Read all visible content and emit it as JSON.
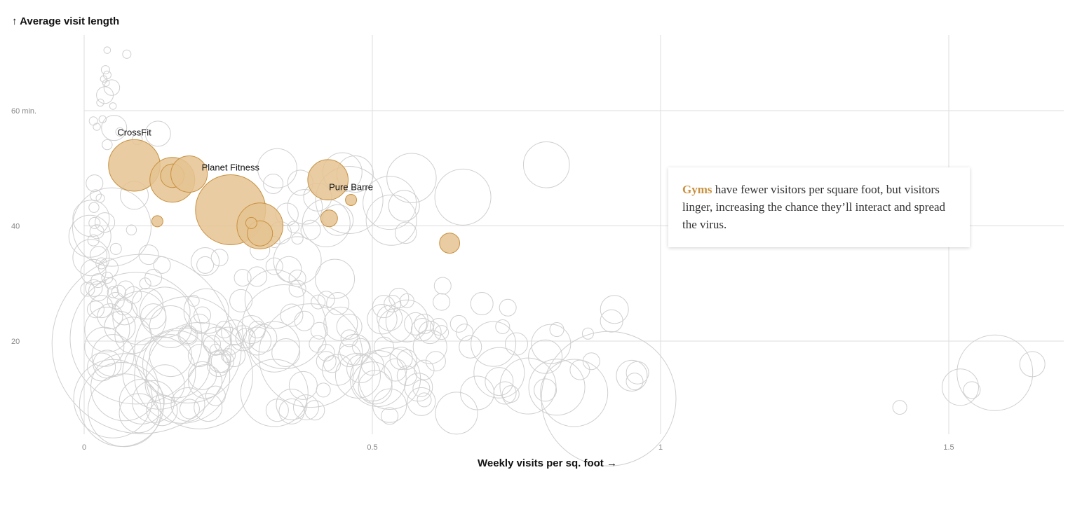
{
  "chart_data": {
    "type": "scatter",
    "ylabel": "Average visit length",
    "ylabel_arrow": "↑",
    "xlabel": "Weekly visits per sq. foot",
    "xlabel_arrow": "→",
    "xlim": [
      0,
      1.7
    ],
    "ylim": [
      4,
      73
    ],
    "x_ticks": [
      {
        "v": 0,
        "label": "0"
      },
      {
        "v": 0.5,
        "label": "0.5"
      },
      {
        "v": 1,
        "label": "1"
      },
      {
        "v": 1.5,
        "label": "1.5"
      }
    ],
    "y_ticks": [
      {
        "v": 60,
        "label": "60 min."
      },
      {
        "v": 40,
        "label": "40"
      },
      {
        "v": 20,
        "label": "20"
      }
    ],
    "grid": true,
    "colors": {
      "highlight": "#c8913f",
      "highlight_fill": "#e5c392",
      "other_stroke": "#cfcfcf",
      "grid": "#dddddd"
    },
    "highlight_series": {
      "name": "Gyms",
      "points": [
        {
          "x": 0.087,
          "y": 50.5,
          "r": 0.92,
          "label": "CrossFit"
        },
        {
          "x": 0.153,
          "y": 48,
          "r": 0.8
        },
        {
          "x": 0.153,
          "y": 48.7,
          "r": 0.42
        },
        {
          "x": 0.182,
          "y": 49,
          "r": 0.65
        },
        {
          "x": 0.254,
          "y": 42.8,
          "r": 1.25,
          "label": "Planet Fitness"
        },
        {
          "x": 0.305,
          "y": 40,
          "r": 0.82
        },
        {
          "x": 0.305,
          "y": 38.7,
          "r": 0.45
        },
        {
          "x": 0.29,
          "y": 40.5,
          "r": 0.2
        },
        {
          "x": 0.127,
          "y": 40.8,
          "r": 0.2
        },
        {
          "x": 0.423,
          "y": 48,
          "r": 0.72
        },
        {
          "x": 0.463,
          "y": 44.5,
          "r": 0.2,
          "label": "Pure Barre"
        },
        {
          "x": 0.425,
          "y": 41.3,
          "r": 0.3
        },
        {
          "x": 0.634,
          "y": 37,
          "r": 0.36
        }
      ]
    },
    "other_points": [
      [
        0.04,
        70.5,
        0.12
      ],
      [
        0.074,
        69.8,
        0.15
      ],
      [
        0.037,
        67.1,
        0.15
      ],
      [
        0.04,
        66.2,
        0.14
      ],
      [
        0.034,
        65.5,
        0.12
      ],
      [
        0.038,
        64.8,
        0.12
      ],
      [
        0.048,
        64,
        0.28
      ],
      [
        0.036,
        62.7,
        0.3
      ],
      [
        0.028,
        61.4,
        0.13
      ],
      [
        0.05,
        60.8,
        0.12
      ],
      [
        0.016,
        58.2,
        0.15
      ],
      [
        0.022,
        57.2,
        0.13
      ],
      [
        0.032,
        58.5,
        0.13
      ],
      [
        0.052,
        57,
        0.45
      ],
      [
        0.062,
        56.3,
        0.15
      ],
      [
        0.092,
        55,
        0.18
      ],
      [
        0.128,
        56,
        0.45
      ],
      [
        0.04,
        54.1,
        0.18
      ],
      [
        0.018,
        47.4,
        0.3
      ],
      [
        0.02,
        45.3,
        0.2
      ],
      [
        0.028,
        44.8,
        0.15
      ],
      [
        0.017,
        43.2,
        0.18
      ],
      [
        0.087,
        45.3,
        0.5
      ],
      [
        0.012,
        41.3,
        0.65
      ],
      [
        0.01,
        38.2,
        0.75
      ],
      [
        0.048,
        39.8,
        1.4
      ],
      [
        0.082,
        39.3,
        0.18
      ],
      [
        0.036,
        40.6,
        0.35
      ],
      [
        0.055,
        36,
        0.2
      ],
      [
        0.018,
        40.5,
        0.2
      ],
      [
        0.022,
        39,
        0.25
      ],
      [
        0.016,
        37.5,
        0.2
      ],
      [
        0.012,
        34.5,
        0.65
      ],
      [
        0.025,
        35,
        0.3
      ],
      [
        0.03,
        33.5,
        0.2
      ],
      [
        0.042,
        32.7,
        0.35
      ],
      [
        0.016,
        32,
        0.45
      ],
      [
        0.024,
        30.5,
        0.25
      ],
      [
        0.04,
        31,
        0.2
      ],
      [
        0.046,
        30,
        0.2
      ],
      [
        0.017,
        29.2,
        0.3
      ],
      [
        0.006,
        29,
        0.25
      ],
      [
        0.025,
        28.7,
        0.35
      ],
      [
        0.06,
        28.5,
        0.25
      ],
      [
        0.085,
        28,
        0.3
      ],
      [
        0.072,
        29,
        0.3
      ],
      [
        0.106,
        30,
        0.2
      ],
      [
        0.12,
        31,
        0.3
      ],
      [
        0.112,
        35,
        0.35
      ],
      [
        0.135,
        33.2,
        0.3
      ],
      [
        0.21,
        33.8,
        0.5
      ],
      [
        0.21,
        33.2,
        0.3
      ],
      [
        0.235,
        34.5,
        0.3
      ],
      [
        0.275,
        31,
        0.3
      ],
      [
        0.305,
        35.8,
        0.35
      ],
      [
        0.33,
        33,
        0.3
      ],
      [
        0.355,
        32.5,
        0.45
      ],
      [
        0.34,
        38.8,
        0.4
      ],
      [
        0.37,
        37.8,
        0.2
      ],
      [
        0.352,
        42,
        0.4
      ],
      [
        0.37,
        34,
        0.85
      ],
      [
        0.393,
        39.3,
        0.35
      ],
      [
        0.44,
        41,
        0.55
      ],
      [
        0.42,
        40.5,
        0.85
      ],
      [
        0.405,
        45,
        0.5
      ],
      [
        0.46,
        44.5,
        1.2
      ],
      [
        0.47,
        49,
        0.65
      ],
      [
        0.448,
        49.3,
        0.7
      ],
      [
        0.53,
        44,
        0.95
      ],
      [
        0.555,
        43.5,
        0.55
      ],
      [
        0.533,
        41,
        0.9
      ],
      [
        0.558,
        38.8,
        0.38
      ],
      [
        0.568,
        48.3,
        0.88
      ],
      [
        0.657,
        45,
        1.0
      ],
      [
        0.802,
        50.6,
        0.82
      ],
      [
        0.335,
        50,
        0.7
      ],
      [
        0.328,
        47.3,
        0.35
      ],
      [
        0.375,
        47.5,
        0.45
      ],
      [
        0.383,
        43.3,
        0.62
      ],
      [
        0.363,
        39.8,
        0.2
      ],
      [
        0.33,
        37.2,
        0.2
      ],
      [
        0.37,
        30.9,
        0.3
      ],
      [
        0.435,
        30.8,
        0.7
      ],
      [
        0.37,
        29.1,
        0.3
      ],
      [
        0.406,
        26.8,
        0.25
      ],
      [
        0.42,
        27.2,
        0.3
      ],
      [
        0.44,
        26.5,
        0.4
      ],
      [
        0.36,
        24.5,
        0.4
      ],
      [
        0.382,
        23.5,
        0.35
      ],
      [
        0.408,
        21.8,
        0.3
      ],
      [
        0.33,
        27.3,
        1.05
      ],
      [
        0.272,
        27,
        0.4
      ],
      [
        0.29,
        22,
        0.5
      ],
      [
        0.243,
        22,
        0.3
      ],
      [
        0.26,
        21.5,
        0.45
      ],
      [
        0.275,
        20.5,
        0.45
      ],
      [
        0.25,
        20,
        0.5
      ],
      [
        0.222,
        19.5,
        0.3
      ],
      [
        0.3,
        31.2,
        0.35
      ],
      [
        0.205,
        24.5,
        0.3
      ],
      [
        0.212,
        25.2,
        0.8
      ],
      [
        0.2,
        23,
        0.35
      ],
      [
        0.18,
        21,
        0.35
      ],
      [
        0.15,
        17.5,
        0.75
      ],
      [
        0.15,
        22.5,
        0.75
      ],
      [
        0.14,
        25,
        0.9
      ],
      [
        0.12,
        24.3,
        0.45
      ],
      [
        0.11,
        26.5,
        0.55
      ],
      [
        0.096,
        24,
        0.95
      ],
      [
        0.085,
        21,
        0.65
      ],
      [
        0.07,
        25,
        0.45
      ],
      [
        0.068,
        26,
        0.3
      ],
      [
        0.055,
        27,
        0.3
      ],
      [
        0.05,
        28.5,
        0.2
      ],
      [
        0.062,
        22.5,
        0.55
      ],
      [
        0.04,
        22,
        0.8
      ],
      [
        0.045,
        24.3,
        0.45
      ],
      [
        0.03,
        26,
        0.4
      ],
      [
        0.02,
        25.5,
        0.3
      ],
      [
        0.035,
        19,
        0.7
      ],
      [
        0.04,
        16,
        0.5
      ],
      [
        0.03,
        15.5,
        0.5
      ],
      [
        0.05,
        17.5,
        0.75
      ],
      [
        0.09,
        20.5,
        2.35
      ],
      [
        0.1,
        19.5,
        3.2
      ],
      [
        0.18,
        18.5,
        1.9
      ],
      [
        0.2,
        14,
        1.9
      ],
      [
        0.16,
        16,
        1.2
      ],
      [
        0.17,
        14,
        1.7
      ],
      [
        0.13,
        14.5,
        1.3
      ],
      [
        0.14,
        12.5,
        0.7
      ],
      [
        0.07,
        12,
        1.2
      ],
      [
        0.05,
        10,
        1.4
      ],
      [
        0.065,
        9,
        1.5
      ],
      [
        0.07,
        8,
        1.3
      ],
      [
        0.1,
        9.5,
        0.8
      ],
      [
        0.095,
        7.5,
        0.7
      ],
      [
        0.12,
        9.5,
        0.75
      ],
      [
        0.135,
        8,
        0.55
      ],
      [
        0.18,
        9,
        0.6
      ],
      [
        0.215,
        8.5,
        0.5
      ],
      [
        0.183,
        8.2,
        0.35
      ],
      [
        0.228,
        10.5,
        0.35
      ],
      [
        0.21,
        13,
        0.6
      ],
      [
        0.233,
        15.8,
        0.4
      ],
      [
        0.235,
        16.5,
        0.4
      ],
      [
        0.25,
        17.5,
        0.25
      ],
      [
        0.228,
        18.5,
        0.2
      ],
      [
        0.205,
        14,
        0.5
      ],
      [
        0.2,
        17.5,
        0.4
      ],
      [
        0.18,
        21,
        0.3
      ],
      [
        0.19,
        27,
        0.2
      ],
      [
        0.33,
        19,
        0.9
      ],
      [
        0.35,
        18,
        0.5
      ],
      [
        0.393,
        17.5,
        1.85
      ],
      [
        0.347,
        22.5,
        1.5
      ],
      [
        0.3,
        20,
        0.5
      ],
      [
        0.31,
        20.5,
        0.5
      ],
      [
        0.3,
        22,
        0.3
      ],
      [
        0.28,
        20.5,
        0.35
      ],
      [
        0.26,
        17.5,
        0.4
      ],
      [
        0.24,
        16.5,
        0.4
      ],
      [
        0.23,
        20,
        0.5
      ],
      [
        0.38,
        12.3,
        0.5
      ],
      [
        0.405,
        19.5,
        0.3
      ],
      [
        0.42,
        18,
        0.3
      ],
      [
        0.43,
        16,
        0.3
      ],
      [
        0.42,
        16.5,
        0.35
      ],
      [
        0.44,
        15,
        0.55
      ],
      [
        0.46,
        20.5,
        0.3
      ],
      [
        0.445,
        23,
        0.6
      ],
      [
        0.46,
        22.5,
        0.45
      ],
      [
        0.46,
        17.5,
        0.4
      ],
      [
        0.47,
        18.5,
        0.55
      ],
      [
        0.48,
        19,
        0.3
      ],
      [
        0.33,
        11,
        1.2
      ],
      [
        0.335,
        8,
        0.4
      ],
      [
        0.36,
        9,
        0.55
      ],
      [
        0.36,
        7.8,
        0.45
      ],
      [
        0.385,
        8.5,
        0.45
      ],
      [
        0.4,
        8,
        0.35
      ],
      [
        0.415,
        11.5,
        0.25
      ],
      [
        0.475,
        14,
        0.8
      ],
      [
        0.48,
        15.2,
        0.5
      ],
      [
        0.5,
        13,
        0.7
      ],
      [
        0.505,
        12,
        0.6
      ],
      [
        0.5,
        16,
        0.4
      ],
      [
        0.51,
        13.5,
        1.0
      ],
      [
        0.53,
        13.5,
        1.1
      ],
      [
        0.517,
        23.8,
        0.53
      ],
      [
        0.52,
        26,
        0.4
      ],
      [
        0.53,
        24,
        0.45
      ],
      [
        0.54,
        22.7,
        0.6
      ],
      [
        0.535,
        26.5,
        0.3
      ],
      [
        0.56,
        23.5,
        0.75
      ],
      [
        0.575,
        23,
        0.4
      ],
      [
        0.587,
        22,
        0.4
      ],
      [
        0.59,
        23,
        0.35
      ],
      [
        0.6,
        21.5,
        0.4
      ],
      [
        0.615,
        22.5,
        0.3
      ],
      [
        0.62,
        21.5,
        0.25
      ],
      [
        0.546,
        27.5,
        0.35
      ],
      [
        0.56,
        27,
        0.25
      ],
      [
        0.52,
        19,
        0.35
      ],
      [
        0.55,
        17,
        0.4
      ],
      [
        0.56,
        16.8,
        0.35
      ],
      [
        0.54,
        15,
        0.4
      ],
      [
        0.56,
        14,
        0.35
      ],
      [
        0.58,
        12,
        0.5
      ],
      [
        0.585,
        11.8,
        0.3
      ],
      [
        0.59,
        15,
        0.35
      ],
      [
        0.6,
        19,
        0.6
      ],
      [
        0.61,
        16.5,
        0.35
      ],
      [
        0.585,
        9.5,
        0.5
      ],
      [
        0.59,
        9.8,
        0.25
      ],
      [
        0.53,
        8.8,
        0.6
      ],
      [
        0.53,
        7,
        0.3
      ],
      [
        0.62,
        26.8,
        0.3
      ],
      [
        0.622,
        29.6,
        0.3
      ],
      [
        0.65,
        23,
        0.3
      ],
      [
        0.66,
        21.5,
        0.3
      ],
      [
        0.646,
        7.5,
        0.75
      ],
      [
        0.682,
        11,
        0.6
      ],
      [
        0.67,
        19,
        0.4
      ],
      [
        0.69,
        26.5,
        0.4
      ],
      [
        0.71,
        19.5,
        0.8
      ],
      [
        0.72,
        14.5,
        0.9
      ],
      [
        0.72,
        13,
        0.5
      ],
      [
        0.726,
        22.5,
        0.25
      ],
      [
        0.73,
        11,
        0.4
      ],
      [
        0.74,
        10.8,
        0.3
      ],
      [
        0.735,
        25.8,
        0.3
      ],
      [
        0.75,
        19.5,
        0.4
      ],
      [
        0.77,
        12.2,
        1.0
      ],
      [
        0.8,
        17.3,
        0.6
      ],
      [
        0.81,
        19.5,
        0.7
      ],
      [
        0.8,
        11.5,
        0.4
      ],
      [
        0.82,
        22,
        0.25
      ],
      [
        0.82,
        12,
        1.0
      ],
      [
        0.85,
        11,
        1.2
      ],
      [
        0.86,
        15,
        0.35
      ],
      [
        0.874,
        21.3,
        0.2
      ],
      [
        0.88,
        16.5,
        0.3
      ],
      [
        0.91,
        10,
        2.4
      ],
      [
        0.915,
        23.5,
        0.4
      ],
      [
        0.92,
        25.5,
        0.5
      ],
      [
        0.95,
        14,
        0.55
      ],
      [
        0.955,
        13,
        0.3
      ],
      [
        0.96,
        14.5,
        0.4
      ],
      [
        1.415,
        8.5,
        0.25
      ],
      [
        1.52,
        12,
        0.65
      ],
      [
        1.54,
        11.5,
        0.3
      ],
      [
        1.58,
        14.5,
        1.35
      ],
      [
        1.645,
        16,
        0.45
      ]
    ]
  },
  "callout": {
    "highlight": "Gyms",
    "text": " have fewer visitors per square foot, but visitors linger, increasing the chance they’ll interact and spread the virus."
  }
}
